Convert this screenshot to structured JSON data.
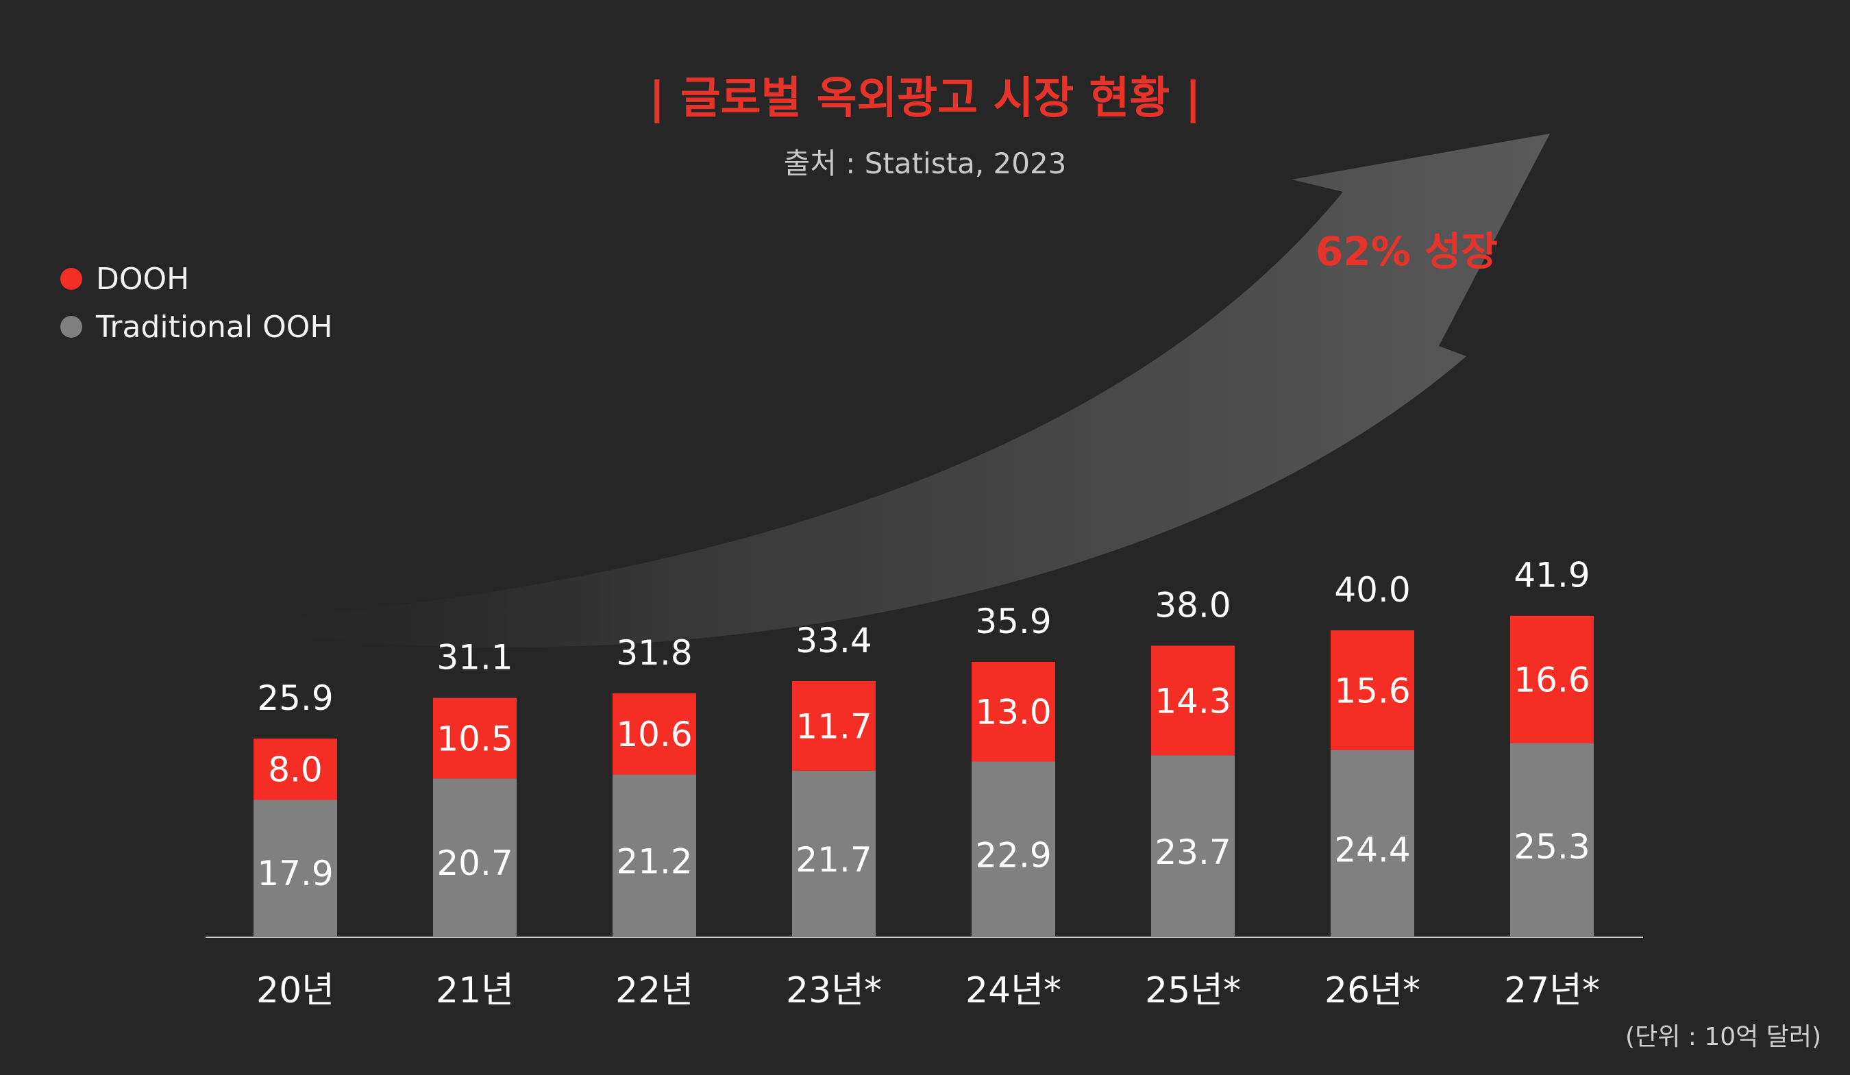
{
  "header": {
    "title": "| 글로벌 옥외광고 시장 현황 |",
    "source": "출처 : Statista, 2023"
  },
  "legend": [
    {
      "label": "DOOH",
      "color": "#f42e24"
    },
    {
      "label": "Traditional OOH",
      "color": "#808080"
    }
  ],
  "annotation": {
    "growth": "62% 성장"
  },
  "footer": {
    "unit": "(단위 : 10억 달러)"
  },
  "colors": {
    "background": "#262626",
    "dooh": "#f42e24",
    "traditional": "#808080",
    "accent": "#e8332a"
  },
  "chart_data": {
    "type": "bar",
    "stacked": true,
    "title": "| 글로벌 옥외광고 시장 현황 |",
    "categories": [
      "20년",
      "21년",
      "22년",
      "23년*",
      "24년*",
      "25년*",
      "26년*",
      "27년*"
    ],
    "series": [
      {
        "name": "Traditional OOH",
        "values": [
          17.9,
          20.7,
          21.2,
          21.7,
          22.9,
          23.7,
          24.4,
          25.3
        ]
      },
      {
        "name": "DOOH",
        "values": [
          8.0,
          10.5,
          10.6,
          11.7,
          13.0,
          14.3,
          15.6,
          16.6
        ]
      }
    ],
    "totals": [
      "25.9",
      "31.1",
      "31.8",
      "33.4",
      "35.9",
      "38.0",
      "40.0",
      "41.9"
    ],
    "labels": {
      "traditional": [
        "17.9",
        "20.7",
        "21.2",
        "21.7",
        "22.9",
        "23.7",
        "24.4",
        "25.3"
      ],
      "dooh": [
        "8.0",
        "10.5",
        "10.6",
        "11.7",
        "13.0",
        "14.3",
        "15.6",
        "16.6"
      ]
    },
    "ylim": [
      0,
      43
    ],
    "xlabel": "",
    "ylabel": "",
    "legend_position": "top-left",
    "grid": false
  }
}
